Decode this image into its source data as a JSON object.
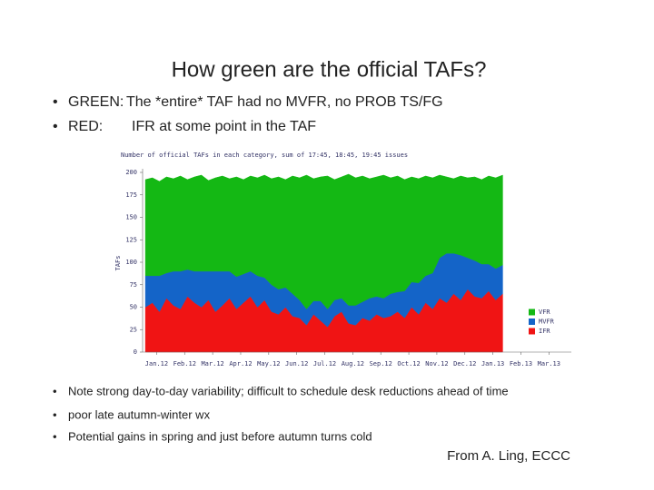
{
  "title": "How green are the official TAFs?",
  "bullets_top": [
    {
      "label": "GREEN:",
      "text": "The *entire* TAF had no MVFR, no PROB TS/FG"
    },
    {
      "label": "RED:",
      "text": "IFR at some point in the TAF"
    }
  ],
  "bullets_bottom": [
    "Note strong day-to-day variability; difficult to schedule desk reductions ahead of time",
    "poor late autumn-winter wx",
    "Potential gains in spring and just before autumn turns cold"
  ],
  "credit": "From A. Ling, ECCC",
  "chart_data": {
    "type": "stacked_area",
    "title": "Number of official TAFs in each category, sum of 17:45, 18:45, 19:45 issues",
    "y_label": "TAFs",
    "x": [
      -0.4,
      -0.15,
      0.1,
      0.35,
      0.6,
      0.85,
      1.1,
      1.35,
      1.6,
      1.85,
      2.1,
      2.35,
      2.6,
      2.85,
      3.1,
      3.35,
      3.6,
      3.85,
      4.1,
      4.35,
      4.6,
      4.85,
      5.1,
      5.35,
      5.6,
      5.85,
      6.1,
      6.35,
      6.6,
      6.85,
      7.1,
      7.35,
      7.6,
      7.85,
      8.1,
      8.35,
      8.6,
      8.85,
      9.1,
      9.35,
      9.6,
      9.85,
      10.1,
      10.35,
      10.6,
      10.85,
      11.1,
      11.35,
      11.6,
      11.85,
      12.1,
      12.35
    ],
    "xlim": [
      -0.5,
      14.8
    ],
    "xticks": [
      {
        "value": 0,
        "label": "Jan.12"
      },
      {
        "value": 1,
        "label": "Feb.12"
      },
      {
        "value": 2,
        "label": "Mar.12"
      },
      {
        "value": 3,
        "label": "Apr.12"
      },
      {
        "value": 4,
        "label": "May.12"
      },
      {
        "value": 5,
        "label": "Jun.12"
      },
      {
        "value": 6,
        "label": "Jul.12"
      },
      {
        "value": 7,
        "label": "Aug.12"
      },
      {
        "value": 8,
        "label": "Sep.12"
      },
      {
        "value": 9,
        "label": "Oct.12"
      },
      {
        "value": 10,
        "label": "Nov.12"
      },
      {
        "value": 11,
        "label": "Dec.12"
      },
      {
        "value": 12,
        "label": "Jan.13"
      },
      {
        "value": 13,
        "label": "Feb.13"
      },
      {
        "value": 14,
        "label": "Mar.13"
      }
    ],
    "ylim": [
      0,
      200
    ],
    "yticks": [
      0,
      25,
      50,
      75,
      100,
      125,
      150,
      175,
      200
    ],
    "legend": "right",
    "series": [
      {
        "name": "VFR",
        "color": "#14b814",
        "values": [
          107,
          109,
          105,
          107,
          103,
          106,
          100,
          105,
          107,
          101,
          104,
          106,
          103,
          111,
          105,
          106,
          109,
          114,
          118,
          125,
          120,
          131,
          136,
          149,
          136,
          138,
          148,
          134,
          135,
          146,
          142,
          140,
          133,
          133,
          137,
          129,
          129,
          124,
          117,
          116,
          111,
          106,
          92,
          85,
          83,
          88,
          89,
          93,
          94,
          98,
          101,
          100
        ]
      },
      {
        "name": "MVFR",
        "color": "#1464c8",
        "values": [
          35,
          30,
          40,
          28,
          38,
          42,
          30,
          35,
          40,
          32,
          45,
          38,
          30,
          36,
          32,
          28,
          35,
          25,
          30,
          28,
          22,
          25,
          20,
          18,
          15,
          22,
          20,
          18,
          15,
          20,
          22,
          18,
          25,
          20,
          22,
          25,
          22,
          30,
          28,
          35,
          30,
          40,
          45,
          55,
          45,
          50,
          35,
          40,
          38,
          30,
          35,
          32
        ]
      },
      {
        "name": "IFR",
        "color": "#f01414",
        "values": [
          50,
          55,
          45,
          60,
          52,
          48,
          62,
          55,
          50,
          58,
          45,
          52,
          60,
          48,
          55,
          62,
          50,
          58,
          45,
          42,
          50,
          40,
          38,
          30,
          42,
          35,
          28,
          40,
          45,
          32,
          30,
          38,
          35,
          42,
          38,
          40,
          45,
          38,
          50,
          42,
          55,
          48,
          60,
          55,
          65,
          58,
          70,
          62,
          60,
          68,
          58,
          65
        ]
      }
    ]
  }
}
